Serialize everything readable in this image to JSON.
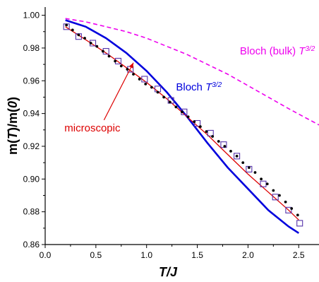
{
  "chart_data": {
    "type": "line",
    "xlabel_parts": [
      {
        "t": "T",
        "italic": true
      },
      {
        "t": "/",
        "italic": true
      },
      {
        "t": "J",
        "italic": true
      }
    ],
    "ylabel_parts": [
      {
        "t": "m(",
        "italic": false
      },
      {
        "t": "T",
        "italic": true
      },
      {
        "t": ")/m(",
        "italic": false
      },
      {
        "t": "0",
        "italic": true
      },
      {
        "t": ")",
        "italic": false
      }
    ],
    "xlim": [
      0.0,
      2.7
    ],
    "ylim": [
      0.86,
      1.005
    ],
    "xticks": [
      0.0,
      0.5,
      1.0,
      1.5,
      2.0,
      2.5
    ],
    "xtick_labels": [
      "0.0",
      "0.5",
      "1.0",
      "1.5",
      "2.0",
      "2.5"
    ],
    "yticks": [
      0.86,
      0.88,
      0.9,
      0.92,
      0.94,
      0.96,
      0.98,
      1.0
    ],
    "ytick_labels": [
      "0.86",
      "0.88",
      "0.90",
      "0.92",
      "0.94",
      "0.96",
      "0.98",
      "1.00"
    ],
    "grid": false,
    "series": [
      {
        "style": "dashed-line",
        "color": "#ee00ee",
        "x": [
          0.2,
          0.4,
          0.6,
          0.8,
          1.0,
          1.2,
          1.4,
          1.6,
          1.8,
          2.0,
          2.2,
          2.4,
          2.7
        ],
        "y": [
          0.998,
          0.996,
          0.993,
          0.99,
          0.986,
          0.981,
          0.976,
          0.97,
          0.964,
          0.957,
          0.95,
          0.943,
          0.933
        ]
      },
      {
        "style": "solid-line",
        "color": "#0000dd",
        "x": [
          0.2,
          0.4,
          0.6,
          0.8,
          1.0,
          1.2,
          1.4,
          1.6,
          1.8,
          2.0,
          2.2,
          2.4,
          2.5
        ],
        "y": [
          0.997,
          0.993,
          0.986,
          0.977,
          0.966,
          0.953,
          0.938,
          0.922,
          0.907,
          0.894,
          0.881,
          0.871,
          0.867
        ]
      },
      {
        "style": "solid-line",
        "color": "#dd0000",
        "x": [
          0.2,
          0.4,
          0.6,
          0.8,
          1.0,
          1.2,
          1.4,
          1.6,
          1.8,
          2.0,
          2.2,
          2.4,
          2.5
        ],
        "y": [
          0.993,
          0.985,
          0.977,
          0.968,
          0.959,
          0.949,
          0.938,
          0.927,
          0.915,
          0.903,
          0.892,
          0.881,
          0.875
        ]
      },
      {
        "style": "open-squares",
        "color": "#5533aa",
        "x": [
          0.21,
          0.33,
          0.47,
          0.6,
          0.72,
          0.84,
          0.98,
          1.11,
          1.24,
          1.37,
          1.5,
          1.63,
          1.76,
          1.89,
          2.01,
          2.15,
          2.27,
          2.4,
          2.51
        ],
        "y": [
          0.993,
          0.987,
          0.983,
          0.978,
          0.972,
          0.967,
          0.961,
          0.955,
          0.948,
          0.941,
          0.934,
          0.928,
          0.921,
          0.914,
          0.906,
          0.897,
          0.889,
          0.881,
          0.873
        ]
      },
      {
        "style": "dots",
        "color": "#000000",
        "x": [
          0.21,
          0.27,
          0.33,
          0.39,
          0.45,
          0.51,
          0.57,
          0.63,
          0.69,
          0.75,
          0.81,
          0.87,
          0.93,
          0.99,
          1.05,
          1.11,
          1.17,
          1.23,
          1.29,
          1.35,
          1.41,
          1.47,
          1.53,
          1.59,
          1.65,
          1.71,
          1.77,
          1.83,
          1.89,
          1.95,
          2.01,
          2.07,
          2.13,
          2.19,
          2.25,
          2.31,
          2.37,
          2.43,
          2.49
        ],
        "y": [
          0.994,
          0.991,
          0.988,
          0.986,
          0.983,
          0.981,
          0.978,
          0.975,
          0.972,
          0.969,
          0.967,
          0.964,
          0.961,
          0.958,
          0.956,
          0.953,
          0.95,
          0.947,
          0.944,
          0.941,
          0.938,
          0.935,
          0.932,
          0.929,
          0.926,
          0.923,
          0.92,
          0.917,
          0.914,
          0.91,
          0.907,
          0.904,
          0.9,
          0.897,
          0.893,
          0.89,
          0.886,
          0.882,
          0.878
        ]
      }
    ],
    "annotations": [
      {
        "color": "#ee00ee",
        "at": [
          1.92,
          0.976
        ],
        "parts": [
          {
            "t": "Bloch (bulk) ",
            "italic": false,
            "sup": false
          },
          {
            "t": "T",
            "italic": true,
            "sup": false
          },
          {
            "t": "3/2",
            "italic": true,
            "sup": true
          }
        ]
      },
      {
        "color": "#0000dd",
        "at": [
          1.29,
          0.954
        ],
        "parts": [
          {
            "t": "Bloch ",
            "italic": false,
            "sup": false
          },
          {
            "t": "T",
            "italic": true,
            "sup": false
          },
          {
            "t": "3/2",
            "italic": true,
            "sup": true
          }
        ]
      },
      {
        "color": "#dd0000",
        "at": [
          0.19,
          0.929
        ],
        "parts": [
          {
            "t": "microscopic",
            "italic": false,
            "sup": false
          }
        ]
      }
    ],
    "arrow": {
      "color": "#dd0000",
      "from": [
        0.58,
        0.936
      ],
      "to": [
        0.87,
        0.971
      ]
    }
  }
}
